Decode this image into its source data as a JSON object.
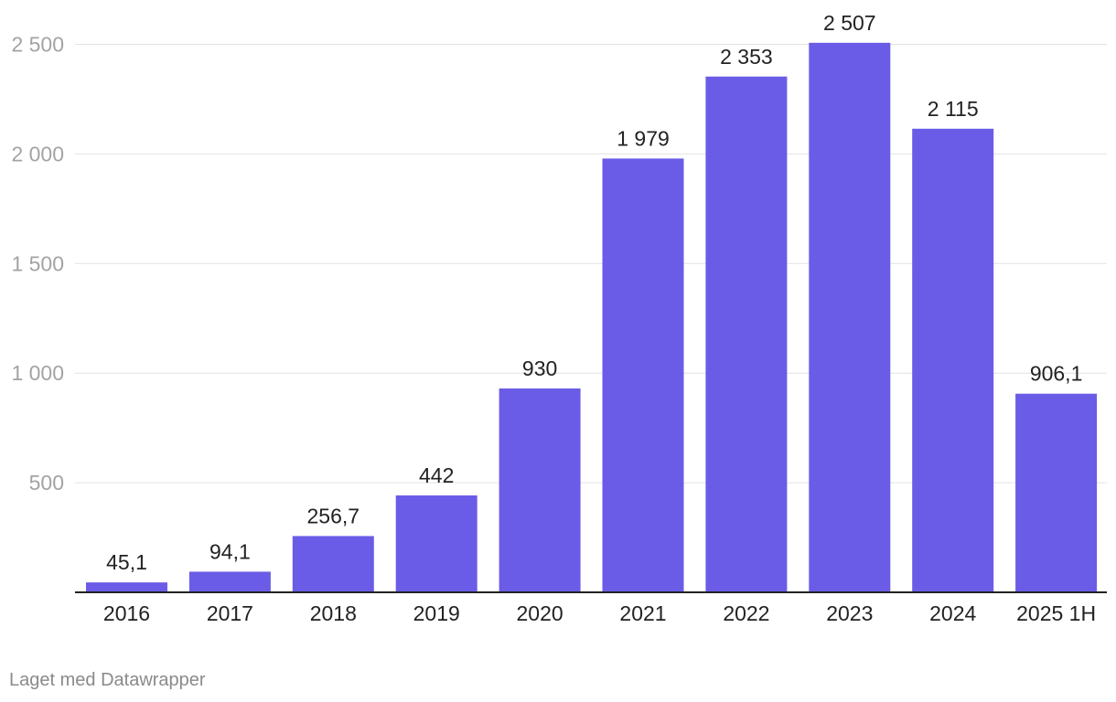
{
  "chart_data": {
    "type": "bar",
    "title": "",
    "xlabel": "",
    "ylabel": "",
    "ylim": [
      0,
      2500
    ],
    "grid": true,
    "y_ticks": [
      {
        "value": 500,
        "label": "500"
      },
      {
        "value": 1000,
        "label": "1 000"
      },
      {
        "value": 1500,
        "label": "1 500"
      },
      {
        "value": 2000,
        "label": "2 000"
      },
      {
        "value": 2500,
        "label": "2 500"
      }
    ],
    "categories": [
      "2016",
      "2017",
      "2018",
      "2019",
      "2020",
      "2021",
      "2022",
      "2023",
      "2024",
      "2025 1H"
    ],
    "values": [
      45.1,
      94.1,
      256.7,
      442,
      930,
      1979,
      2353,
      2507,
      2115,
      906.1
    ],
    "value_labels": [
      "45,1",
      "94,1",
      "256,7",
      "442",
      "930",
      "1 979",
      "2 353",
      "2 507",
      "2 115",
      "906,1"
    ],
    "bar_color": "#6b5ce7"
  },
  "footer": {
    "credit": "Laget med Datawrapper"
  }
}
